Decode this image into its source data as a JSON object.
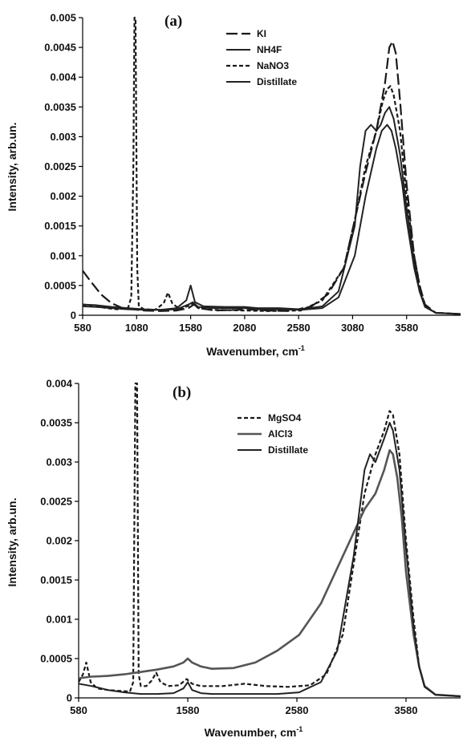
{
  "chart_data": [
    {
      "type": "line",
      "panel_label": "(a)",
      "xlabel": "Wavenumber, cm",
      "xlabel_sup": "-1",
      "ylabel": "Intensity, arb.un.",
      "xlim": [
        580,
        4080
      ],
      "ylim": [
        0,
        0.005
      ],
      "xticks": [
        "580",
        "1080",
        "1580",
        "2080",
        "2580",
        "3080",
        "3580"
      ],
      "yticks": [
        "0",
        "0.0005",
        "0.001",
        "0.0015",
        "0.002",
        "0.0025",
        "0.003",
        "0.0035",
        "0.004",
        "0.0045",
        "0.005"
      ],
      "grid": false,
      "legend_position": "top-right",
      "series": [
        {
          "name": "KI",
          "dash": "long-dash",
          "x": [
            580,
            650,
            750,
            850,
            950,
            1050,
            1150,
            1300,
            1450,
            1560,
            1610,
            1660,
            1800,
            2000,
            2100,
            2300,
            2500,
            2700,
            2850,
            3000,
            3100,
            3200,
            3300,
            3380,
            3420,
            3450,
            3480,
            3520,
            3580,
            3650,
            3700,
            3750,
            3850,
            4080
          ],
          "y": [
            0.00075,
            0.00058,
            0.00035,
            0.0002,
            0.00012,
            0.0001,
            8e-05,
            7e-05,
            8e-05,
            0.00012,
            0.00018,
            0.00012,
            8e-05,
            9e-05,
            0.0001,
            8e-05,
            7e-05,
            0.00015,
            0.00035,
            0.0008,
            0.0016,
            0.0024,
            0.0031,
            0.0039,
            0.0045,
            0.0046,
            0.0044,
            0.0036,
            0.0022,
            0.001,
            0.0005,
            0.00018,
            4e-05,
            2e-05
          ]
        },
        {
          "name": "NH4F",
          "dash": "solid",
          "x": [
            580,
            700,
            850,
            1000,
            1150,
            1300,
            1450,
            1540,
            1580,
            1620,
            1700,
            1900,
            2080,
            2200,
            2400,
            2600,
            2800,
            2950,
            3100,
            3150,
            3200,
            3250,
            3300,
            3340,
            3380,
            3420,
            3460,
            3520,
            3580,
            3650,
            3700,
            3750,
            3850,
            4080
          ],
          "y": [
            0.00015,
            0.00014,
            0.00012,
            0.0001,
            9e-05,
            9e-05,
            0.00012,
            0.00025,
            0.0005,
            0.00022,
            0.00015,
            0.00014,
            0.00014,
            0.00012,
            0.00012,
            0.0001,
            0.00015,
            0.0004,
            0.0015,
            0.0025,
            0.0031,
            0.0032,
            0.0031,
            0.0032,
            0.0034,
            0.0035,
            0.0033,
            0.0027,
            0.0018,
            0.0009,
            0.0004,
            0.00015,
            4e-05,
            2e-05
          ]
        },
        {
          "name": "NaNO3",
          "dash": "short-dash",
          "x": [
            580,
            700,
            800,
            900,
            1000,
            1030,
            1050,
            1060,
            1070,
            1085,
            1100,
            1150,
            1250,
            1330,
            1370,
            1410,
            1480,
            1560,
            1600,
            1650,
            1800,
            2080,
            2300,
            2600,
            2800,
            3000,
            3100,
            3200,
            3300,
            3360,
            3400,
            3430,
            3460,
            3520,
            3580,
            3650,
            3700,
            3750,
            3850,
            4080
          ],
          "y": [
            0.00018,
            0.00016,
            0.00012,
            0.0001,
            0.00012,
            0.0003,
            0.0025,
            0.005,
            0.005,
            0.0008,
            0.00015,
            0.0001,
            9e-05,
            0.0002,
            0.00038,
            0.0002,
            0.0001,
            0.00016,
            0.0002,
            0.00012,
            9e-05,
            8e-05,
            7e-05,
            8e-05,
            0.00025,
            0.0008,
            0.0016,
            0.0025,
            0.0031,
            0.0036,
            0.0038,
            0.00385,
            0.0037,
            0.0031,
            0.002,
            0.001,
            0.0005,
            0.00015,
            4e-05,
            2e-05
          ]
        },
        {
          "name": "Distillate",
          "dash": "solid",
          "x": [
            580,
            700,
            850,
            1000,
            1150,
            1300,
            1450,
            1560,
            1600,
            1650,
            1800,
            2000,
            2080,
            2200,
            2400,
            2600,
            2800,
            2950,
            3100,
            3200,
            3300,
            3350,
            3400,
            3440,
            3480,
            3540,
            3580,
            3650,
            3700,
            3750,
            3850,
            4080
          ],
          "y": [
            0.00018,
            0.00017,
            0.00014,
            0.00012,
            0.0001,
            9e-05,
            0.0001,
            0.00018,
            0.00022,
            0.00014,
            0.00012,
            0.00012,
            0.00012,
            0.0001,
            0.0001,
            9e-05,
            0.00012,
            0.0003,
            0.001,
            0.002,
            0.0028,
            0.0031,
            0.0032,
            0.0031,
            0.0028,
            0.0022,
            0.0016,
            0.0008,
            0.0004,
            0.00014,
            4e-05,
            2e-05
          ]
        }
      ]
    },
    {
      "type": "line",
      "panel_label": "(b)",
      "xlabel": "Wavenumber, cm",
      "xlabel_sup": "-1",
      "ylabel": "Intensity, arb.un.",
      "xlim": [
        580,
        4080
      ],
      "ylim": [
        0,
        0.004
      ],
      "xticks": [
        "580",
        "1580",
        "2580",
        "3580"
      ],
      "yticks": [
        "0",
        "0.0005",
        "0.001",
        "0.0015",
        "0.002",
        "0.0025",
        "0.003",
        "0.0035",
        "0.004"
      ],
      "grid": false,
      "legend_position": "top-right",
      "series": [
        {
          "name": "MgSO4",
          "dash": "short-dash",
          "x": [
            580,
            620,
            650,
            690,
            750,
            850,
            950,
            1050,
            1080,
            1100,
            1115,
            1130,
            1150,
            1200,
            1250,
            1290,
            1330,
            1400,
            1500,
            1570,
            1620,
            1700,
            1900,
            2100,
            2300,
            2500,
            2700,
            2850,
            3000,
            3100,
            3200,
            3300,
            3380,
            3430,
            3460,
            3520,
            3580,
            3650,
            3700,
            3750,
            3850,
            4080
          ],
          "y": [
            0.0002,
            0.0003,
            0.00045,
            0.0002,
            0.00012,
            0.0001,
            9e-05,
            8e-05,
            0.0002,
            0.004,
            0.004,
            0.0003,
            0.00015,
            0.00015,
            0.00022,
            0.00032,
            0.0002,
            0.00015,
            0.00016,
            0.00024,
            0.00018,
            0.00015,
            0.00015,
            0.00018,
            0.00015,
            0.00014,
            0.00016,
            0.0003,
            0.0008,
            0.0017,
            0.0026,
            0.0031,
            0.0034,
            0.00365,
            0.0036,
            0.0031,
            0.002,
            0.001,
            0.0004,
            0.00015,
            4e-05,
            2e-05
          ]
        },
        {
          "name": "AlCl3",
          "dash": "solid-thick-grey",
          "x": [
            580,
            700,
            850,
            1000,
            1150,
            1300,
            1450,
            1540,
            1580,
            1620,
            1700,
            1800,
            2000,
            2200,
            2400,
            2600,
            2800,
            3000,
            3100,
            3200,
            3300,
            3380,
            3430,
            3460,
            3500,
            3540,
            3580,
            3650,
            3700,
            3750,
            3850,
            4080
          ],
          "y": [
            0.00025,
            0.00027,
            0.00028,
            0.0003,
            0.00033,
            0.00036,
            0.0004,
            0.00045,
            0.0005,
            0.00045,
            0.0004,
            0.00037,
            0.00038,
            0.00045,
            0.0006,
            0.0008,
            0.0012,
            0.0018,
            0.0021,
            0.0024,
            0.0026,
            0.0029,
            0.00315,
            0.0031,
            0.0028,
            0.0023,
            0.0016,
            0.0008,
            0.0004,
            0.00015,
            4e-05,
            2e-05
          ]
        },
        {
          "name": "Distillate",
          "dash": "solid",
          "x": [
            580,
            700,
            850,
            1000,
            1150,
            1300,
            1450,
            1540,
            1580,
            1620,
            1700,
            1800,
            2000,
            2200,
            2400,
            2600,
            2800,
            2950,
            3100,
            3200,
            3250,
            3300,
            3380,
            3430,
            3460,
            3520,
            3580,
            3650,
            3700,
            3750,
            3850,
            4080
          ],
          "y": [
            0.00018,
            0.00015,
            0.0001,
            7e-05,
            5e-05,
            5e-05,
            6e-05,
            0.00012,
            0.0002,
            0.0001,
            6e-05,
            5e-05,
            5e-05,
            5e-05,
            5e-05,
            7e-05,
            0.0002,
            0.0006,
            0.0018,
            0.0029,
            0.0031,
            0.003,
            0.0033,
            0.0035,
            0.0034,
            0.0029,
            0.0019,
            0.0009,
            0.0004,
            0.00014,
            4e-05,
            2e-05
          ]
        }
      ]
    }
  ]
}
